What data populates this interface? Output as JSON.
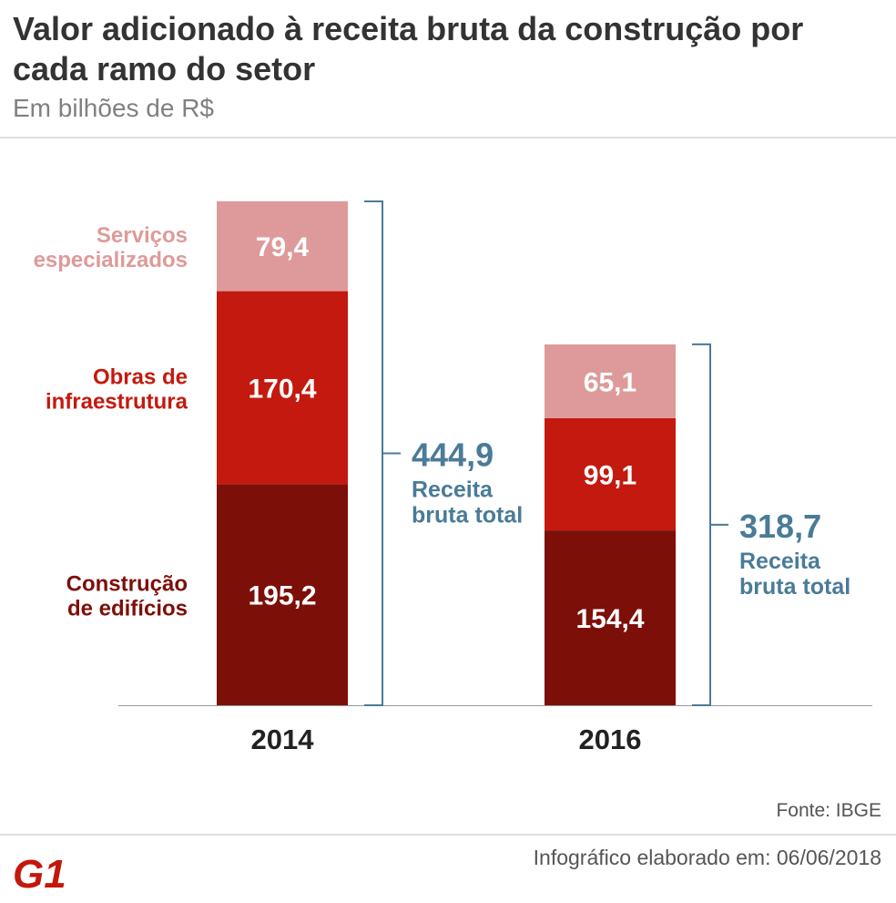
{
  "header": {
    "title": "Valor adicionado à receita bruta da construção por cada ramo do setor",
    "subtitle": "Em bilhões de R$"
  },
  "chart_data": {
    "type": "bar",
    "stacked": true,
    "categories": [
      "2014",
      "2016"
    ],
    "series": [
      {
        "name": "Construção de edifícios",
        "label_lines": [
          "Construção",
          "de edifícios"
        ],
        "values": [
          195.2,
          154.4
        ],
        "value_labels": [
          "195,2",
          "154,4"
        ],
        "color": "#7d0f09"
      },
      {
        "name": "Obras de infraestrutura",
        "label_lines": [
          "Obras de",
          "infraestrutura"
        ],
        "values": [
          170.4,
          99.1
        ],
        "value_labels": [
          "170,4",
          "99,1"
        ],
        "color": "#c4190e"
      },
      {
        "name": "Serviços especializados",
        "label_lines": [
          "Serviços",
          "especializados"
        ],
        "values": [
          79.4,
          65.1
        ],
        "value_labels": [
          "79,4",
          "65,1"
        ],
        "color": "#de9a9a"
      }
    ],
    "totals": [
      {
        "value": 444.9,
        "value_label": "444,9",
        "caption_lines": [
          "Receita",
          "bruta total"
        ]
      },
      {
        "value": 318.7,
        "value_label": "318,7",
        "caption_lines": [
          "Receita",
          "bruta total"
        ]
      }
    ],
    "ylim": [
      0,
      444.9
    ],
    "grid": false,
    "xlabel": "",
    "ylabel": "",
    "colors": {
      "total_bracket": "#4a7b98",
      "axis": "#999999"
    }
  },
  "footer": {
    "source": "Fonte: IBGE",
    "credit": "Infográfico elaborado em: 06/06/2018",
    "logo_text": "G1",
    "logo_color": "#c4170c"
  }
}
